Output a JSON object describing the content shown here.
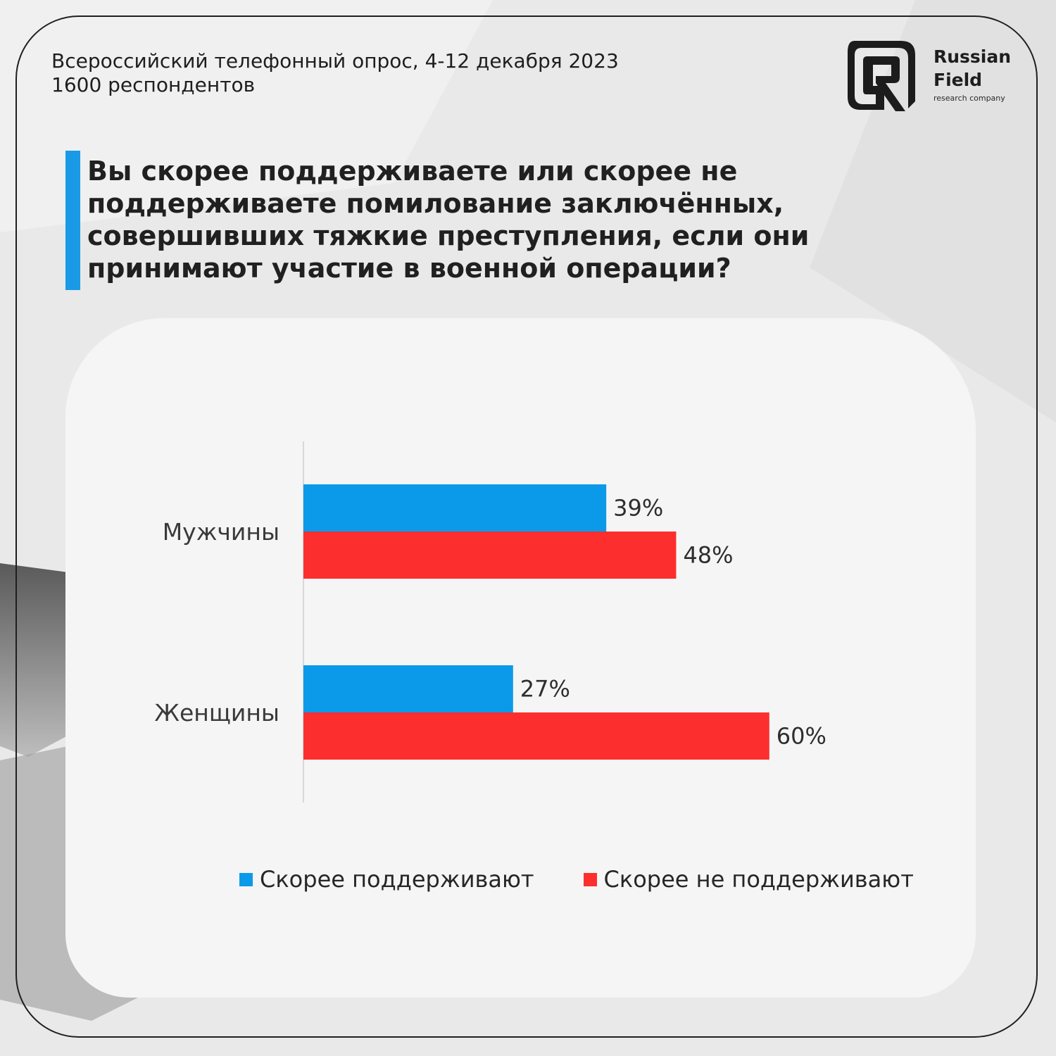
{
  "header": {
    "survey_line": "Всероссийский телефонный опрос, 4-12 декабря 2023",
    "respondents_line": "1600 респондентов"
  },
  "logo": {
    "name_line1": "Russian",
    "name_line2": "Field",
    "tagline": "research company"
  },
  "question": "Вы скорее поддерживаете или скорее не поддерживаете помилование заключённых, совершивших тяжкие преступления, если они принимают участие в военной операции?",
  "colors": {
    "support": "#0b9ae9",
    "oppose": "#fd2e2e",
    "accent": "#1a9ae6"
  },
  "chart_data": {
    "type": "bar",
    "orientation": "horizontal",
    "categories": [
      "Мужчины",
      "Женщины"
    ],
    "series": [
      {
        "name": "Скорее поддерживают",
        "values": [
          39,
          27
        ],
        "labels": [
          "39%",
          "27%"
        ],
        "color": "#0b9ae9"
      },
      {
        "name": "Скорее не поддерживают",
        "values": [
          48,
          60
        ],
        "labels": [
          "48%",
          "60%"
        ],
        "color": "#fd2e2e"
      }
    ],
    "xlim": [
      0,
      100
    ],
    "grid": false,
    "legend_position": "bottom"
  }
}
